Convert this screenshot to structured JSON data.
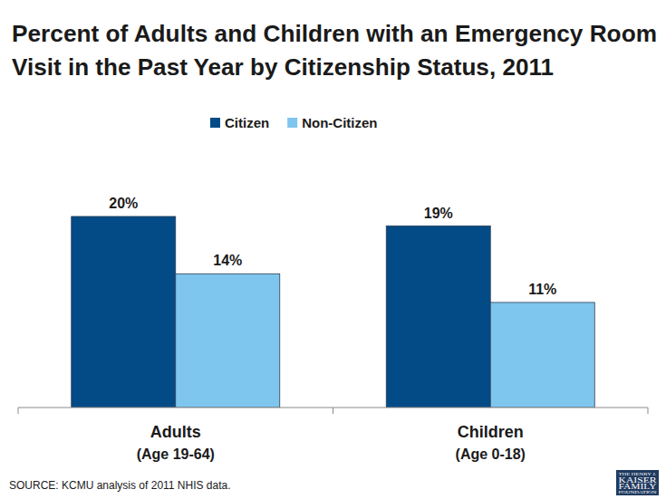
{
  "chart_data": {
    "type": "bar",
    "title": "Percent of Adults and Children with an Emergency Room\nVisit in the Past Year by Citizenship Status, 2011",
    "categories": [
      "Adults\n(Age 19-64)",
      "Children\n(Age 0-18)"
    ],
    "series": [
      {
        "name": "Citizen",
        "color": "#034b87",
        "values": [
          20,
          19
        ],
        "value_labels": [
          "20%",
          "19%"
        ]
      },
      {
        "name": "Non-Citizen",
        "color": "#7fc6ee",
        "values": [
          14,
          11
        ],
        "value_labels": [
          "14%",
          "11%"
        ]
      }
    ],
    "ylim": [
      0,
      20
    ],
    "data_labels": true,
    "tick_labels": "x",
    "legend": "top",
    "source": "SOURCE: KCMU analysis of 2011 NHIS data.",
    "logo": [
      "THE HENRY J.",
      "KAISER",
      "FAMILY",
      "FOUNDATION"
    ]
  }
}
